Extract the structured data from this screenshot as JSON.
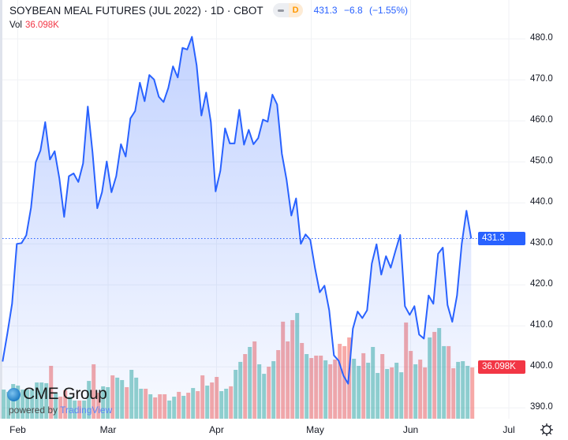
{
  "header": {
    "title": "SOYBEAN MEAL FUTURES (JUL 2022) · 1D · CBOT",
    "badge_letter": "D",
    "last": "431.3",
    "change": "−6.8",
    "change_pct": "(−1.55%)",
    "vol_label": "Vol",
    "vol_value": "36.098K"
  },
  "logo": {
    "brand": "CME Group",
    "powered_prefix": "powered by",
    "powered_brand": "TradingView"
  },
  "colors": {
    "line": "#2962ff",
    "up": "#26a69a",
    "down": "#ef5350",
    "price_box": "#2962ff",
    "vol_box": "#f23645"
  },
  "price_axis": {
    "labels": [
      "490.0",
      "480.0",
      "470.0",
      "460.0",
      "450.0",
      "440.0",
      "430.0",
      "420.0",
      "410.0",
      "400.0",
      "390.0"
    ],
    "last_box": "431.3",
    "vol_box": "36.098K"
  },
  "time_axis": [
    "Feb",
    "Mar",
    "Apr",
    "May",
    "Jun",
    "Jul"
  ],
  "icons": {
    "settings": "gear-icon"
  },
  "chart_data": {
    "type": "area",
    "title": "SOYBEAN MEAL FUTURES (JUL 2022) · 1D · CBOT",
    "ylim": [
      388,
      490
    ],
    "x_ticks": [
      "Feb",
      "Mar",
      "Apr",
      "May",
      "Jun",
      "Jul"
    ],
    "series": [
      {
        "name": "Close",
        "values": [
          401.3,
          408.1,
          415.4,
          430.0,
          430.2,
          432.1,
          438.8,
          449.9,
          452.8,
          459.7,
          450.6,
          452.6,
          445.9,
          436.6,
          446.5,
          447.2,
          445.1,
          449.6,
          463.5,
          452.3,
          438.7,
          442.6,
          450.1,
          442.6,
          446.5,
          454.3,
          451.3,
          460.6,
          462.4,
          469.3,
          464.8,
          471.2,
          470.1,
          465.9,
          464.6,
          468.0,
          473.3,
          470.6,
          477.8,
          477.4,
          480.5,
          473.5,
          461.3,
          466.9,
          459.7,
          442.8,
          447.8,
          458.2,
          454.5,
          454.5,
          462.7,
          454.2,
          457.8,
          454.3,
          455.8,
          460.3,
          459.8,
          466.4,
          464.0,
          452.0,
          445.6,
          436.9,
          441.1,
          430.0,
          432.3,
          431.0,
          424.1,
          418.2,
          419.8,
          413.8,
          402.8,
          401.5,
          397.9,
          395.9,
          409.3,
          413.5,
          411.9,
          413.8,
          425.2,
          429.9,
          422.5,
          427.0,
          424.2,
          428.3,
          432.2,
          414.8,
          412.7,
          414.8,
          407.9,
          406.9,
          417.4,
          415.4,
          427.6,
          429.1,
          415.1,
          411.0,
          417.4,
          430.0,
          438.1,
          431.3
        ]
      },
      {
        "name": "Volume (K)",
        "values": [
          20.5,
          18.9,
          24.4,
          23.3,
          20.5,
          20.5,
          20.5,
          25.5,
          25.5,
          25.0,
          37.2,
          18.3,
          15.5,
          20.0,
          15.5,
          12.8,
          12.8,
          12.8,
          26.6,
          38.3,
          18.3,
          22.8,
          22.2,
          30.5,
          28.9,
          27.2,
          22.2,
          34.4,
          28.9,
          21.1,
          21.1,
          17.2,
          15.0,
          17.2,
          17.2,
          12.8,
          15.5,
          18.9,
          16.1,
          18.3,
          21.6,
          19.4,
          30.5,
          23.3,
          25.5,
          29.4,
          19.4,
          21.1,
          22.8,
          34.4,
          40.0,
          45.5,
          50.5,
          54.4,
          38.3,
          31.6,
          36.6,
          40.5,
          48.3,
          68.3,
          54.4,
          69.4,
          74.4,
          53.3,
          45.5,
          42.7,
          44.4,
          44.4,
          41.1,
          38.3,
          41.6,
          52.7,
          51.1,
          57.2,
          42.2,
          37.2,
          46.1,
          39.4,
          50.5,
          32.2,
          45.5,
          35.0,
          36.1,
          39.4,
          32.7,
          67.7,
          47.7,
          38.3,
          41.6,
          36.1,
          57.2,
          61.1,
          63.8,
          51.1,
          51.1,
          35.5,
          40.0,
          40.5,
          37.2,
          36.098
        ]
      }
    ],
    "last_price": 431.3,
    "grid": true
  }
}
